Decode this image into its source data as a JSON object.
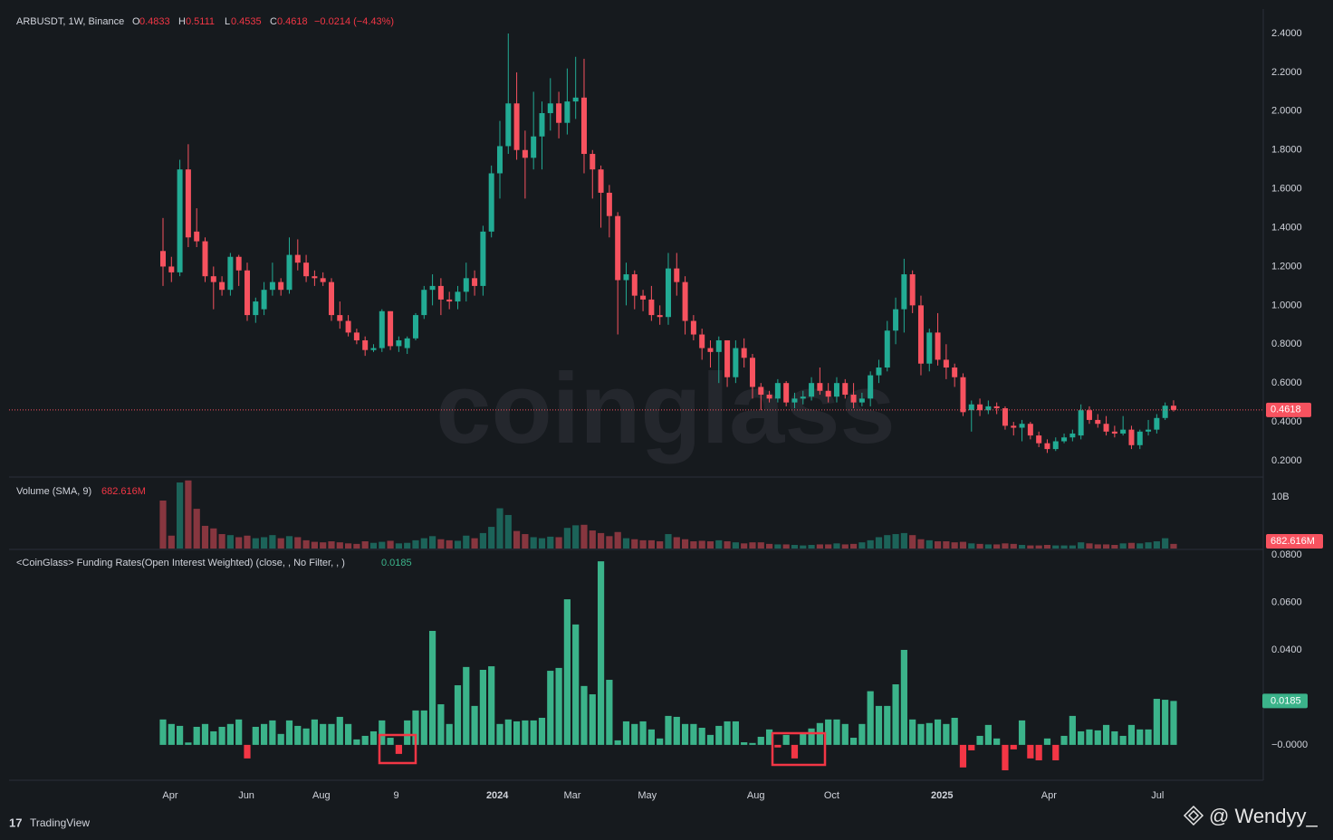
{
  "chart_data": [
    {
      "type": "candlestick",
      "series": [
        {
          "name": "ARBUSDT, 1W, Binance",
          "open": [
            1.28,
            1.2,
            1.17,
            1.7,
            1.38,
            1.33,
            1.15,
            1.12,
            1.08,
            1.25,
            1.18,
            0.95,
            0.98,
            1.08,
            1.12,
            1.08,
            1.26,
            1.22,
            1.15,
            1.14,
            1.12,
            0.95,
            0.92,
            0.86,
            0.82,
            0.77,
            0.78,
            0.97,
            0.79,
            0.78,
            0.83,
            0.95,
            1.08,
            1.1,
            1.03,
            1.02,
            1.07,
            1.14,
            1.1,
            1.38,
            1.68,
            1.82,
            2.04,
            1.8,
            1.76,
            1.87,
            1.99,
            2.04,
            1.94,
            2.05,
            2.07,
            1.78,
            1.7,
            1.58,
            1.46,
            1.13,
            1.16,
            1.05,
            1.03,
            0.95,
            0.94,
            1.19,
            1.12,
            0.92,
            0.85,
            0.78,
            0.76,
            0.82,
            0.63,
            0.78,
            0.73,
            0.58,
            0.54,
            0.52,
            0.6,
            0.5,
            0.52,
            0.53,
            0.6,
            0.56,
            0.53,
            0.6,
            0.54,
            0.5,
            0.52,
            0.64,
            0.68,
            0.87,
            0.98,
            1.16,
            1.0,
            0.7,
            0.86,
            0.72,
            0.68,
            0.63,
            0.46,
            0.49,
            0.46,
            0.48,
            0.47,
            0.38,
            0.37,
            0.39,
            0.33,
            0.29,
            0.26,
            0.3,
            0.32,
            0.33,
            0.46,
            0.41,
            0.39,
            0.35,
            0.34,
            0.36,
            0.28,
            0.35,
            0.36,
            0.42,
            0.4833
          ],
          "high": [
            1.45,
            1.25,
            1.75,
            1.83,
            1.5,
            1.35,
            1.2,
            1.15,
            1.27,
            1.26,
            1.22,
            1.04,
            1.12,
            1.22,
            1.14,
            1.35,
            1.34,
            1.26,
            1.18,
            1.17,
            1.14,
            1.02,
            0.95,
            0.88,
            0.84,
            0.8,
            0.98,
            0.97,
            0.84,
            0.84,
            0.96,
            1.1,
            1.16,
            1.14,
            1.07,
            1.1,
            1.22,
            1.18,
            1.41,
            1.72,
            1.95,
            2.4,
            2.2,
            1.9,
            2.1,
            2.05,
            2.17,
            2.1,
            2.22,
            2.28,
            2.27,
            1.8,
            1.72,
            1.62,
            1.48,
            1.22,
            1.18,
            1.08,
            1.1,
            1.0,
            1.27,
            1.27,
            1.15,
            0.95,
            0.88,
            0.82,
            0.84,
            0.82,
            0.82,
            0.83,
            0.75,
            0.6,
            0.56,
            0.62,
            0.61,
            0.55,
            0.56,
            0.63,
            0.68,
            0.6,
            0.63,
            0.62,
            0.6,
            0.55,
            0.66,
            0.72,
            0.92,
            1.04,
            1.24,
            1.18,
            1.05,
            0.88,
            0.96,
            0.8,
            0.7,
            0.65,
            0.51,
            0.52,
            0.51,
            0.5,
            0.48,
            0.4,
            0.41,
            0.4,
            0.35,
            0.31,
            0.32,
            0.34,
            0.36,
            0.49,
            0.48,
            0.44,
            0.43,
            0.38,
            0.43,
            0.38,
            0.36,
            0.41,
            0.44,
            0.5,
            0.5111
          ],
          "low": [
            1.1,
            1.12,
            1.15,
            1.3,
            1.3,
            1.12,
            0.98,
            1.05,
            1.05,
            1.1,
            0.92,
            0.91,
            0.95,
            1.05,
            1.05,
            1.06,
            1.18,
            1.12,
            1.1,
            1.1,
            0.92,
            0.88,
            0.84,
            0.8,
            0.74,
            0.76,
            0.76,
            0.77,
            0.76,
            0.75,
            0.82,
            0.93,
            1.0,
            0.95,
            0.98,
            0.98,
            1.02,
            1.05,
            1.05,
            1.35,
            1.55,
            1.78,
            1.75,
            1.55,
            1.7,
            1.7,
            1.9,
            1.86,
            1.88,
            1.96,
            1.68,
            1.55,
            1.4,
            1.35,
            0.85,
            1.0,
            0.98,
            0.97,
            0.92,
            0.9,
            0.9,
            1.05,
            0.85,
            0.82,
            0.72,
            0.68,
            0.6,
            0.58,
            0.6,
            0.68,
            0.52,
            0.46,
            0.5,
            0.5,
            0.48,
            0.47,
            0.49,
            0.51,
            0.54,
            0.5,
            0.5,
            0.52,
            0.47,
            0.48,
            0.48,
            0.6,
            0.66,
            0.8,
            0.86,
            0.96,
            0.64,
            0.66,
            0.69,
            0.62,
            0.58,
            0.43,
            0.35,
            0.43,
            0.44,
            0.44,
            0.36,
            0.33,
            0.3,
            0.31,
            0.27,
            0.24,
            0.25,
            0.29,
            0.3,
            0.31,
            0.39,
            0.37,
            0.33,
            0.32,
            0.33,
            0.26,
            0.26,
            0.33,
            0.34,
            0.41,
            0.4535
          ],
          "close": [
            1.2,
            1.17,
            1.7,
            1.35,
            1.33,
            1.15,
            1.12,
            1.08,
            1.25,
            1.18,
            0.95,
            1.02,
            1.08,
            1.12,
            1.08,
            1.26,
            1.22,
            1.15,
            1.14,
            1.12,
            0.95,
            0.92,
            0.86,
            0.82,
            0.77,
            0.78,
            0.97,
            0.79,
            0.82,
            0.83,
            0.95,
            1.08,
            1.1,
            1.03,
            1.02,
            1.07,
            1.14,
            1.1,
            1.38,
            1.68,
            1.82,
            2.04,
            1.8,
            1.76,
            1.87,
            1.99,
            2.04,
            1.94,
            2.05,
            2.07,
            1.78,
            1.7,
            1.58,
            1.46,
            1.13,
            1.16,
            1.05,
            1.03,
            0.95,
            0.94,
            1.19,
            1.12,
            0.92,
            0.85,
            0.78,
            0.76,
            0.82,
            0.63,
            0.78,
            0.73,
            0.58,
            0.54,
            0.52,
            0.6,
            0.5,
            0.52,
            0.53,
            0.6,
            0.56,
            0.53,
            0.6,
            0.54,
            0.5,
            0.52,
            0.64,
            0.68,
            0.87,
            0.98,
            1.16,
            1.0,
            0.7,
            0.86,
            0.72,
            0.68,
            0.63,
            0.45,
            0.49,
            0.46,
            0.48,
            0.47,
            0.38,
            0.37,
            0.39,
            0.33,
            0.29,
            0.26,
            0.3,
            0.32,
            0.34,
            0.46,
            0.41,
            0.39,
            0.35,
            0.34,
            0.36,
            0.28,
            0.35,
            0.36,
            0.42,
            0.4833,
            0.4618
          ]
        }
      ],
      "ohlc_labels": [
        "O",
        "H",
        "L",
        "C"
      ],
      "change_text": "−0.0214 (−4.43%)",
      "up_color": "#22ab94",
      "down_color": "#f7525f",
      "ylim": [
        0.116,
        2.526
      ],
      "yticks": [
        {
          "value": 0.2,
          "label": "0.2000"
        },
        {
          "value": 0.4,
          "label": "0.4000"
        },
        {
          "value": 0.6,
          "label": "0.6000"
        },
        {
          "value": 0.8,
          "label": "0.8000"
        },
        {
          "value": 1.0,
          "label": "1.0000"
        },
        {
          "value": 1.2,
          "label": "1.2000"
        },
        {
          "value": 1.4,
          "label": "1.4000"
        },
        {
          "value": 1.6,
          "label": "1.6000"
        },
        {
          "value": 1.8,
          "label": "1.8000"
        },
        {
          "value": 2.0,
          "label": "2.0000"
        },
        {
          "value": 2.2,
          "label": "2.2000"
        },
        {
          "value": 2.4,
          "label": "2.4000"
        }
      ],
      "xlim": [
        -18.28,
        130.65
      ],
      "xticks": [
        {
          "value": 0.86,
          "label": "Apr"
        },
        {
          "value": 9.9,
          "label": "Jun"
        },
        {
          "value": 18.8,
          "label": "Aug"
        },
        {
          "value": 27.7,
          "label": "9"
        },
        {
          "value": 39.7,
          "label": "2024"
        },
        {
          "value": 48.6,
          "label": "Mar"
        },
        {
          "value": 57.5,
          "label": "May"
        },
        {
          "value": 70.4,
          "label": "Aug"
        },
        {
          "value": 79.4,
          "label": "Oct"
        },
        {
          "value": 92.5,
          "label": "2025"
        },
        {
          "value": 105.2,
          "label": "Apr"
        },
        {
          "value": 118.1,
          "label": "Jul"
        }
      ],
      "grid": true,
      "last_price_line": true
    },
    {
      "type": "bar",
      "title": "Volume (SMA, 9)",
      "values": [
        9300000000.0,
        2500000000.0,
        12800000000.0,
        13200000000.0,
        7700000000.0,
        4400000000.0,
        3900000000.0,
        2800000000.0,
        2600000000.0,
        2200000000.0,
        2500000000.0,
        2000000000.0,
        2200000000.0,
        2600000000.0,
        2000000000.0,
        2400000000.0,
        2200000000.0,
        1600000000.0,
        1300000000.0,
        1200000000.0,
        1400000000.0,
        1200000000.0,
        1000000000.0,
        900000000.0,
        1400000000.0,
        1100000000.0,
        1300000000.0,
        1500000000.0,
        1000000000.0,
        1100000000.0,
        1600000000.0,
        2000000000.0,
        2400000000.0,
        1800000000.0,
        1600000000.0,
        1500000000.0,
        2500000000.0,
        2000000000.0,
        3000000000.0,
        4200000000.0,
        7800000000.0,
        6500000000.0,
        3400000000.0,
        2800000000.0,
        2200000000.0,
        2000000000.0,
        2300000000.0,
        2200000000.0,
        4000000000.0,
        4500000000.0,
        4600000000.0,
        3500000000.0,
        3000000000.0,
        2400000000.0,
        3200000000.0,
        2000000000.0,
        1800000000.0,
        1600000000.0,
        1600000000.0,
        1400000000.0,
        2800000000.0,
        2200000000.0,
        1800000000.0,
        1400000000.0,
        1500000000.0,
        1400000000.0,
        1600000000.0,
        1400000000.0,
        1200000000.0,
        1000000000.0,
        1200000000.0,
        1200000000.0,
        900000000.0,
        800000000.0,
        800000000.0,
        700000000.0,
        600000000.0,
        700000000.0,
        800000000.0,
        800000000.0,
        1000000000.0,
        800000000.0,
        900000000.0,
        1200000000.0,
        1600000000.0,
        2200000000.0,
        2600000000.0,
        2800000000.0,
        3000000000.0,
        2600000000.0,
        1800000000.0,
        1600000000.0,
        1400000000.0,
        1400000000.0,
        1200000000.0,
        1300000000.0,
        1000000000.0,
        900000000.0,
        800000000.0,
        800000000.0,
        1000000000.0,
        900000000.0,
        700000000.0,
        600000000.0,
        600000000.0,
        700000000.0,
        600000000.0,
        600000000.0,
        600000000.0,
        1200000000.0,
        1000000000.0,
        800000000.0,
        800000000.0,
        700000000.0,
        1000000000.0,
        1100000000.0,
        1000000000.0,
        1200000000.0,
        1400000000.0,
        2000000000.0,
        900000000.0
      ],
      "sma": {
        "value": 682616000,
        "value_label": "682.616M"
      },
      "ylim": [
        0,
        13860000000.0
      ],
      "yticks": [
        {
          "value": 10000000000.0,
          "label": "10B"
        }
      ]
    },
    {
      "type": "bar",
      "title": "<CoinGlass> Funding Rates(Open Interest Weighted) (close, , No Filter, , )",
      "values": [
        0.0107,
        0.0088,
        0.008,
        0.001,
        0.0076,
        0.0088,
        0.0057,
        0.0076,
        0.0088,
        0.0107,
        -0.0057,
        0.0076,
        0.0088,
        0.0103,
        0.0046,
        0.0103,
        0.008,
        0.0069,
        0.0107,
        0.0088,
        0.0088,
        0.0118,
        0.0088,
        0.0023,
        0.0038,
        0.0057,
        0.0103,
        0.003,
        -0.0038,
        0.0103,
        0.0145,
        0.0145,
        0.048,
        0.0171,
        0.0088,
        0.0251,
        0.0328,
        0.0164,
        0.0316,
        0.0331,
        0.0088,
        0.0107,
        0.0099,
        0.0103,
        0.0103,
        0.0114,
        0.0312,
        0.0324,
        0.0613,
        0.0507,
        0.0248,
        0.0213,
        0.0773,
        0.0274,
        0.0019,
        0.0099,
        0.0088,
        0.0099,
        0.0065,
        0.0027,
        0.0122,
        0.0118,
        0.0088,
        0.0088,
        0.0072,
        0.0042,
        0.008,
        0.0099,
        0.0099,
        0.0011,
        0.0008,
        0.0034,
        0.0065,
        -0.0011,
        0.0042,
        -0.0057,
        0.0046,
        0.0069,
        0.0092,
        0.0107,
        0.0107,
        0.0088,
        0.003,
        0.0088,
        0.0226,
        0.0164,
        0.0164,
        0.0255,
        0.04,
        0.0107,
        0.0088,
        0.0092,
        0.0107,
        0.0088,
        0.0114,
        -0.0095,
        -0.0023,
        0.0038,
        0.0084,
        0.0027,
        -0.0107,
        -0.0019,
        0.0103,
        -0.0057,
        -0.0065,
        0.0027,
        -0.0065,
        0.0038,
        0.0122,
        0.0057,
        0.0065,
        0.0061,
        0.0084,
        0.0057,
        0.0038,
        0.0084,
        0.0065,
        0.0065,
        0.0194,
        0.019,
        0.0185
      ],
      "positive_color": "#3bb38a",
      "negative_color": "#f23645",
      "ylim": [
        -0.0149,
        0.0823
      ],
      "yticks": [
        {
          "value": 0.08,
          "label": "0.0800"
        },
        {
          "value": 0.06,
          "label": "0.0600"
        },
        {
          "value": 0.04,
          "label": "0.0400"
        },
        {
          "value": 0,
          "label": "−0.0000"
        }
      ]
    }
  ],
  "watermark": "coinglass",
  "branding": "TradingView",
  "credit": "@ Wendyy_"
}
